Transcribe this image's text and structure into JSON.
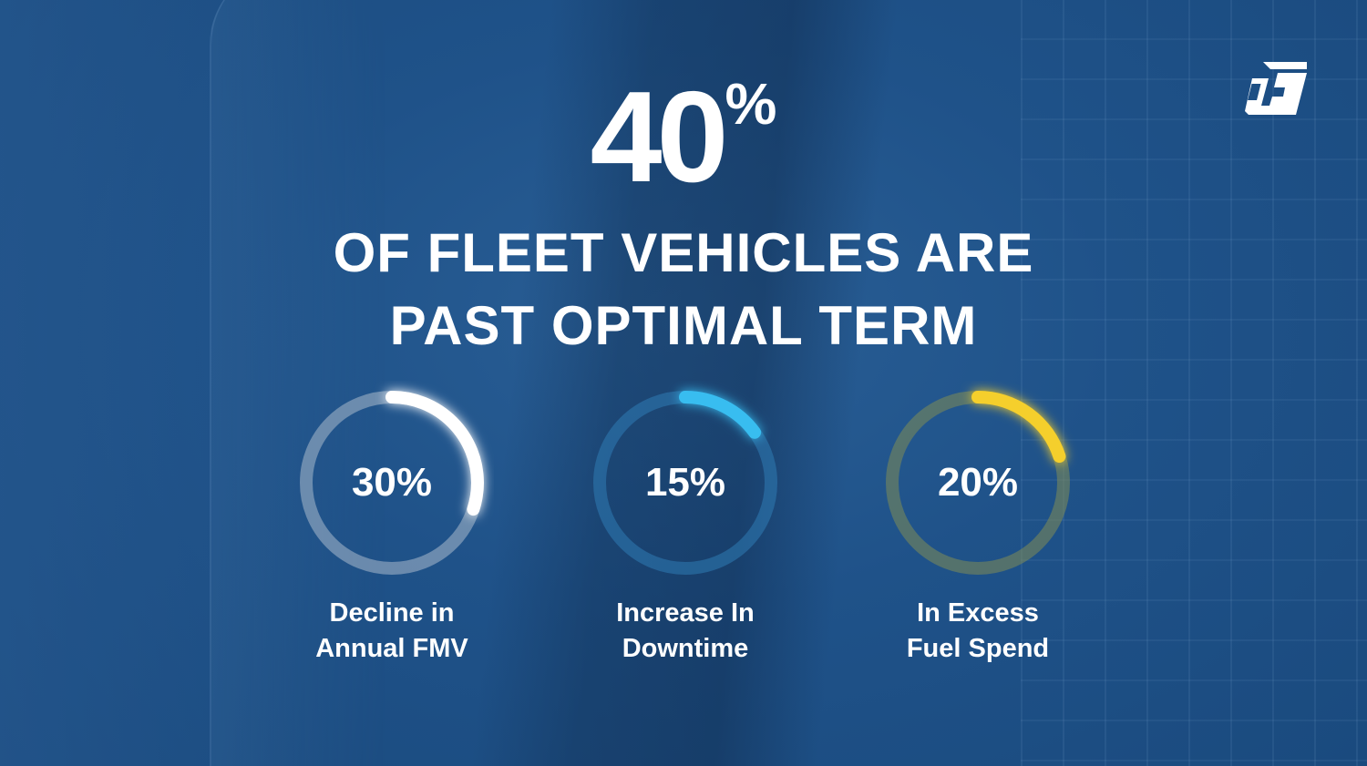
{
  "brand": {
    "logo_icon": "square-bracket-logo-icon"
  },
  "headline": {
    "big_value": "40",
    "big_unit": "%",
    "line1": "OF FLEET VEHICLES ARE",
    "line2": "PAST OPTIMAL TERM"
  },
  "stats": [
    {
      "value_text": "30%",
      "fraction": 0.3,
      "label_line1": "Decline in",
      "label_line2": "Annual FMV",
      "color": "#ffffff",
      "track_color": "#a9b9cc"
    },
    {
      "value_text": "15%",
      "fraction": 0.15,
      "label_line1": "Increase In",
      "label_line2": "Downtime",
      "color": "#38bdf0",
      "track_color": "#2f7cb4"
    },
    {
      "value_text": "20%",
      "fraction": 0.2,
      "label_line1": "In Excess",
      "label_line2": "Fuel Spend",
      "color": "#f5cf2c",
      "track_color": "#7f8c55"
    }
  ],
  "colors": {
    "background": "#1d4f84",
    "text": "#ffffff"
  }
}
